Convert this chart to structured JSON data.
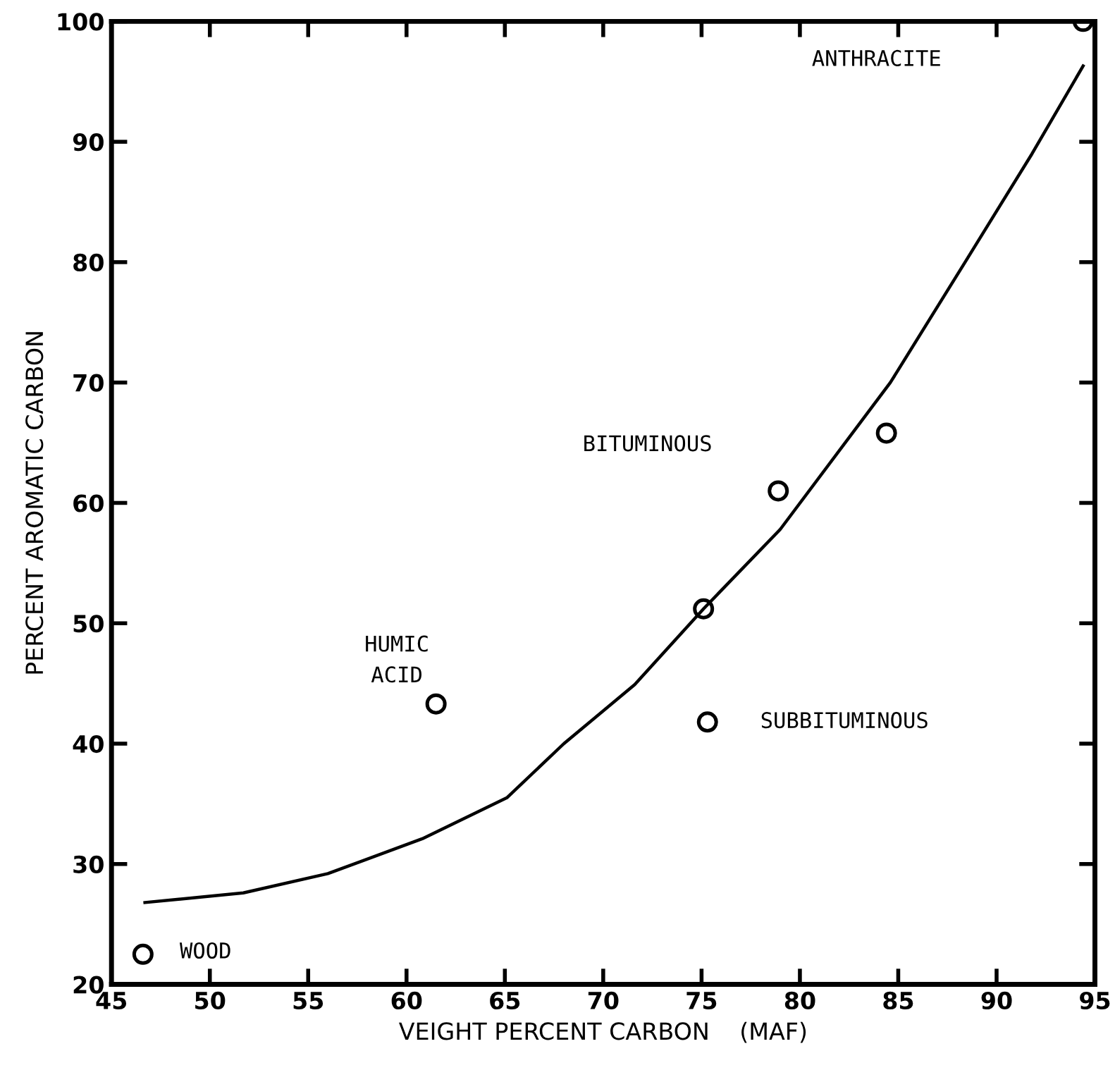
{
  "chart_data": {
    "type": "scatter",
    "xlabel": "VEIGHT PERCENT CARBON    (MAF)",
    "ylabel": "PERCENT AROMATIC CARBON",
    "series": [
      {
        "color": "#000000",
        "marker": "circle",
        "x": [
          46.6,
          61.5,
          75.1,
          75.3,
          78.9,
          84.4,
          94.4
        ],
        "values": [
          22.5,
          43.3,
          51.2,
          41.8,
          61,
          65.8,
          100
        ]
      },
      {
        "type": "line",
        "color": "#000000",
        "marker": "none",
        "x": [
          46.7,
          51.7,
          56.0,
          60.8,
          65.1,
          68.0,
          71.6,
          75.1,
          79.0,
          84.6,
          88.4,
          91.8,
          94.4
        ],
        "values": [
          26.8,
          27.6,
          29.2,
          32.1,
          35.5,
          40,
          44.9,
          51.2,
          57.8,
          70,
          80,
          89,
          96.3
        ]
      }
    ],
    "xlim": [
      45,
      95
    ],
    "ylim": [
      20,
      100
    ],
    "xticks": [
      {
        "value": 45,
        "label": "45"
      },
      50,
      55,
      60,
      65,
      70,
      75,
      80,
      85,
      90,
      95
    ],
    "yticks": [
      20,
      30,
      40,
      50,
      60,
      70,
      80,
      90,
      100
    ],
    "annotations": [
      "ANTHRACITE",
      "BITUMINOUS",
      {
        "text": "HUMIC\nACID",
        "x": 61.5,
        "y": 43.3
      },
      {
        "text": "SUBBITUMINOUS",
        "x": 75.3,
        "y": 41.8
      },
      {
        "text": "WOOD",
        "x": 46.6,
        "y": 22.5
      }
    ]
  }
}
